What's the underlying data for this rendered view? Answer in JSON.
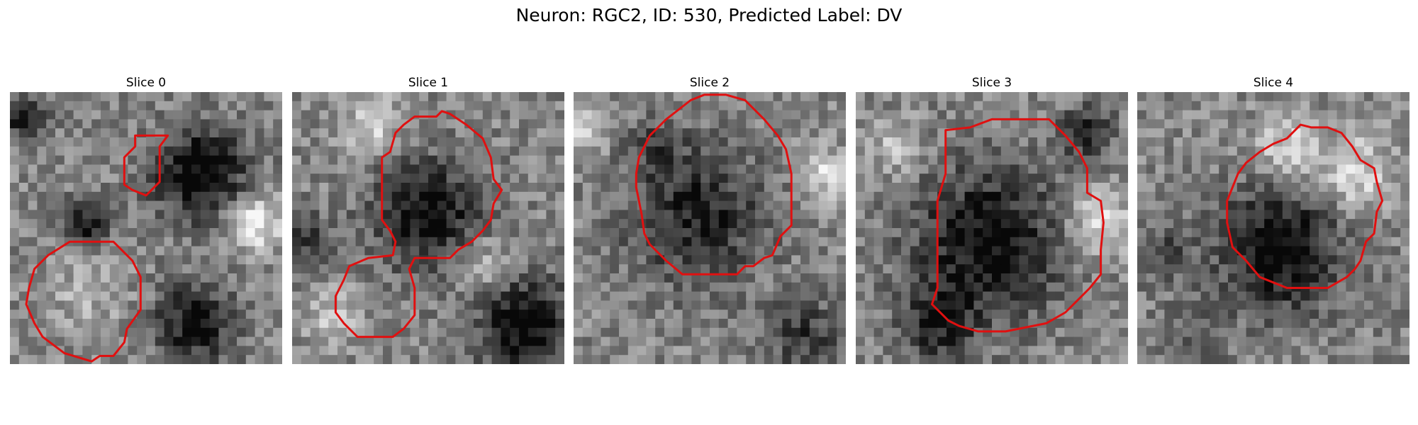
{
  "figure": {
    "title": "Neuron: RGC2, ID: 530, Predicted Label: DV",
    "contour_color": "#e01010"
  },
  "panels": [
    {
      "title": "Slice 0",
      "image": "grayscale-microscopy-slice"
    },
    {
      "title": "Slice 1",
      "image": "grayscale-microscopy-slice"
    },
    {
      "title": "Slice 2",
      "image": "grayscale-microscopy-slice"
    },
    {
      "title": "Slice 3",
      "image": "grayscale-microscopy-slice"
    },
    {
      "title": "Slice 4",
      "image": "grayscale-microscopy-slice"
    }
  ]
}
